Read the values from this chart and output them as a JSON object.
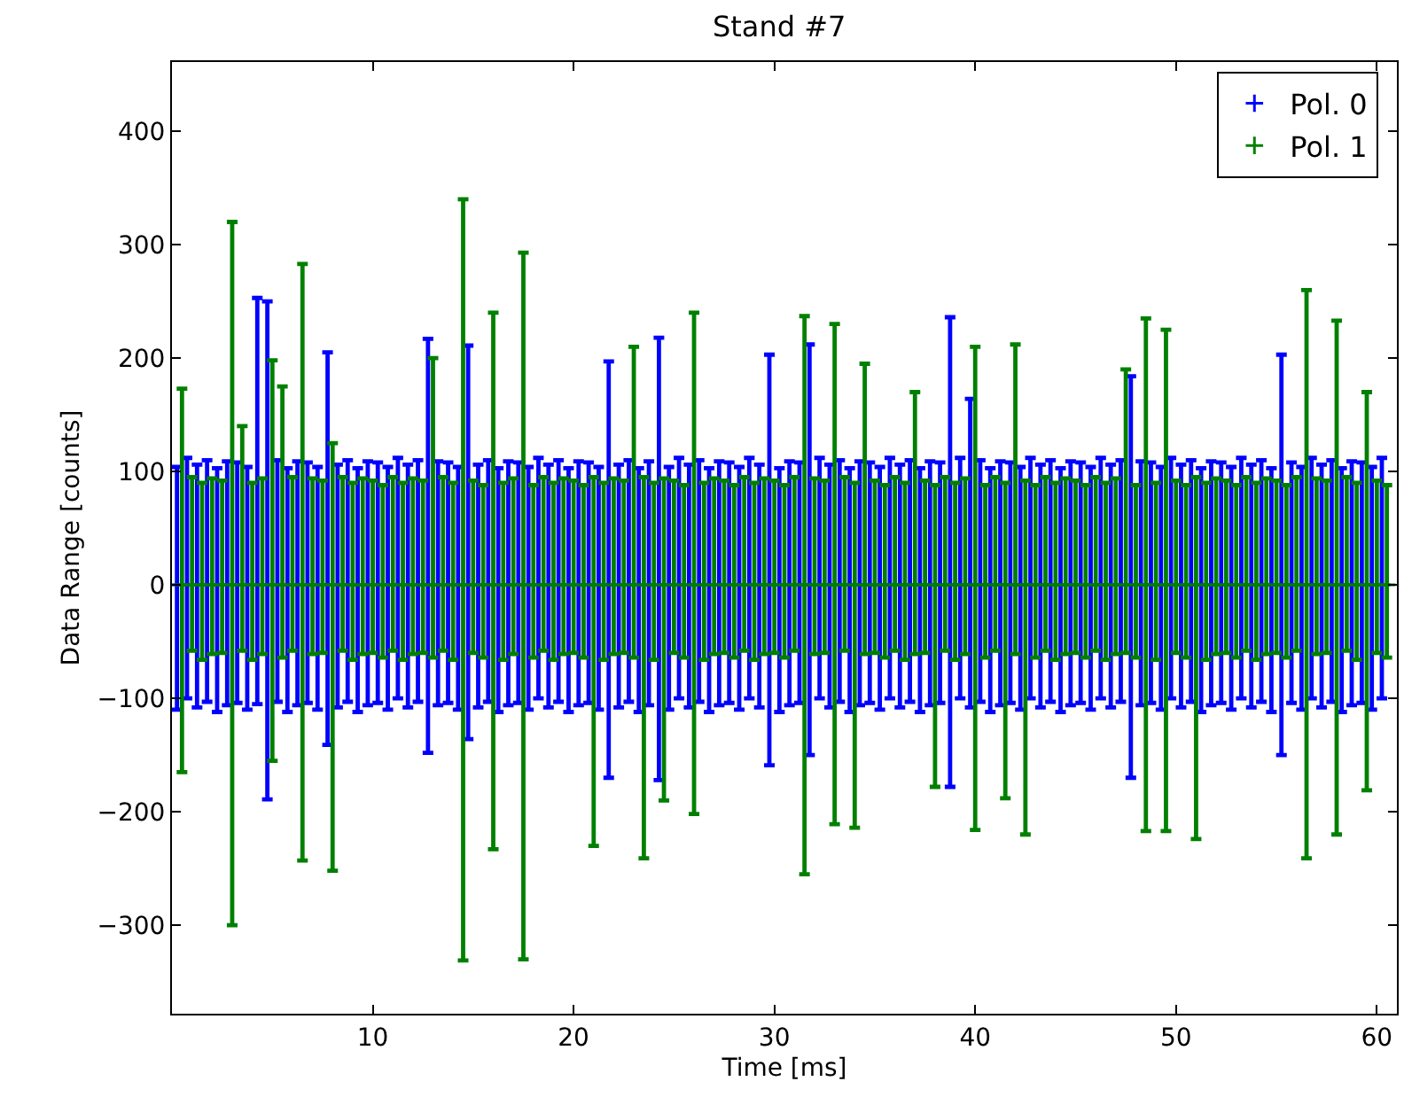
{
  "chart_data": {
    "type": "scatter",
    "title": "Stand #7",
    "xlabel": "Time [ms]",
    "ylabel": "Data Range [counts]",
    "xlim": [
      0,
      61
    ],
    "ylim": [
      -378,
      461
    ],
    "xticks": [
      10,
      20,
      30,
      40,
      50,
      60
    ],
    "yticks": [
      -300,
      -200,
      -100,
      0,
      100,
      200,
      300,
      400
    ],
    "legend": "top right",
    "x": [
      0.5,
      1,
      1.5,
      2,
      2.5,
      3,
      3.5,
      4,
      4.5,
      5,
      5.5,
      6,
      6.5,
      7,
      7.5,
      8,
      8.5,
      9,
      9.5,
      10,
      10.5,
      11,
      11.5,
      12,
      12.5,
      13,
      13.5,
      14,
      14.5,
      15,
      15.5,
      16,
      16.5,
      17,
      17.5,
      18,
      18.5,
      19,
      19.5,
      20,
      20.5,
      21,
      21.5,
      22,
      22.5,
      23,
      23.5,
      24,
      24.5,
      25,
      25.5,
      26,
      26.5,
      27,
      27.5,
      28,
      28.5,
      29,
      29.5,
      30,
      30.5,
      31,
      31.5,
      32,
      32.5,
      33,
      33.5,
      34,
      34.5,
      35,
      35.5,
      36,
      36.5,
      37,
      37.5,
      38,
      38.5,
      39,
      39.5,
      40,
      40.5,
      41,
      41.5,
      42,
      42.5,
      43,
      43.5,
      44,
      44.5,
      45,
      45.5,
      46,
      46.5,
      47,
      47.5,
      48,
      48.5,
      49,
      49.5,
      50,
      50.5,
      51,
      51.5,
      52,
      52.5,
      53,
      53.5,
      54,
      54.5,
      55,
      55.5,
      56,
      56.5,
      57,
      57.5,
      58,
      58.5,
      59,
      59.5,
      60,
      60.5
    ],
    "series": [
      {
        "name": "Pol. 0",
        "color": "#0000ff",
        "x": [
          0.25,
          0.75,
          1.25,
          1.75,
          2.25,
          2.75,
          3.25,
          3.75,
          4.25,
          4.75,
          5.25,
          5.75,
          6.25,
          6.75,
          7.25,
          7.75,
          8.25,
          8.75,
          9.25,
          9.75,
          10.25,
          10.75,
          11.25,
          11.75,
          12.25,
          12.75,
          13.25,
          13.75,
          14.25,
          14.75,
          15.25,
          15.75,
          16.25,
          16.75,
          17.25,
          17.75,
          18.25,
          18.75,
          19.25,
          19.75,
          20.25,
          20.75,
          21.25,
          21.75,
          22.25,
          22.75,
          23.25,
          23.75,
          24.25,
          24.75,
          25.25,
          25.75,
          26.25,
          26.75,
          27.25,
          27.75,
          28.25,
          28.75,
          29.25,
          29.75,
          30.25,
          30.75,
          31.25,
          31.75,
          32.25,
          32.75,
          33.25,
          33.75,
          34.25,
          34.75,
          35.25,
          35.75,
          36.25,
          36.75,
          37.25,
          37.75,
          38.25,
          38.75,
          39.25,
          39.75,
          40.25,
          40.75,
          41.25,
          41.75,
          42.25,
          42.75,
          43.25,
          43.75,
          44.25,
          44.75,
          45.25,
          45.75,
          46.25,
          46.75,
          47.25,
          47.75,
          48.25,
          48.75,
          49.25,
          49.75,
          50.25,
          50.75,
          51.25,
          51.75,
          52.25,
          52.75,
          53.25,
          53.75,
          54.25,
          54.75,
          55.25,
          55.75,
          56.25,
          56.75,
          57.25,
          57.75,
          58.25,
          58.75,
          59.25,
          59.75,
          60.25
        ],
        "values": [
          0,
          0,
          0,
          0,
          0,
          0,
          0,
          0,
          0,
          0,
          0,
          0,
          0,
          0,
          0,
          0,
          0,
          0,
          0,
          0,
          0,
          0,
          0,
          0,
          0,
          0,
          0,
          0,
          0,
          0,
          0,
          0,
          0,
          0,
          0,
          0,
          0,
          0,
          0,
          0,
          0,
          0,
          0,
          0,
          0,
          0,
          0,
          0,
          0,
          0,
          0,
          0,
          0,
          0,
          0,
          0,
          0,
          0,
          0,
          0,
          0,
          0,
          0,
          0,
          0,
          0,
          0,
          0,
          0,
          0,
          0,
          0,
          0,
          0,
          0,
          0,
          0,
          0,
          0,
          0,
          0,
          0,
          0,
          0,
          0,
          0,
          0,
          0,
          0,
          0,
          0,
          0,
          0,
          0,
          0,
          0,
          0,
          0,
          0,
          0,
          0,
          0,
          0,
          0,
          0,
          0,
          0,
          0,
          0,
          0,
          0,
          0,
          0,
          0,
          0,
          0,
          0,
          0,
          0,
          0,
          0
        ],
        "errors": [
          [
            -110,
            104
          ],
          [
            -100,
            112
          ],
          [
            -108,
            106
          ],
          [
            -103,
            110
          ],
          [
            -112,
            103
          ],
          [
            -106,
            109
          ],
          [
            -104,
            108
          ],
          [
            -110,
            104
          ],
          [
            -105,
            253
          ],
          [
            -189,
            250
          ],
          [
            -103,
            110
          ],
          [
            -112,
            103
          ],
          [
            -106,
            109
          ],
          [
            -104,
            108
          ],
          [
            -110,
            104
          ],
          [
            -141,
            205
          ],
          [
            -108,
            106
          ],
          [
            -103,
            110
          ],
          [
            -112,
            103
          ],
          [
            -106,
            109
          ],
          [
            -104,
            108
          ],
          [
            -110,
            104
          ],
          [
            -100,
            112
          ],
          [
            -108,
            106
          ],
          [
            -103,
            110
          ],
          [
            -148,
            217
          ],
          [
            -106,
            109
          ],
          [
            -104,
            108
          ],
          [
            -110,
            104
          ],
          [
            -136,
            211
          ],
          [
            -108,
            106
          ],
          [
            -103,
            110
          ],
          [
            -112,
            103
          ],
          [
            -106,
            109
          ],
          [
            -104,
            108
          ],
          [
            -110,
            104
          ],
          [
            -100,
            112
          ],
          [
            -108,
            106
          ],
          [
            -103,
            110
          ],
          [
            -112,
            103
          ],
          [
            -106,
            109
          ],
          [
            -104,
            108
          ],
          [
            -110,
            104
          ],
          [
            -170,
            197
          ],
          [
            -108,
            106
          ],
          [
            -103,
            110
          ],
          [
            -112,
            103
          ],
          [
            -106,
            109
          ],
          [
            -172,
            218
          ],
          [
            -110,
            104
          ],
          [
            -100,
            112
          ],
          [
            -108,
            106
          ],
          [
            -103,
            110
          ],
          [
            -112,
            103
          ],
          [
            -106,
            109
          ],
          [
            -104,
            108
          ],
          [
            -110,
            104
          ],
          [
            -100,
            112
          ],
          [
            -108,
            106
          ],
          [
            -159,
            203
          ],
          [
            -112,
            103
          ],
          [
            -106,
            109
          ],
          [
            -104,
            108
          ],
          [
            -150,
            212
          ],
          [
            -100,
            112
          ],
          [
            -108,
            106
          ],
          [
            -103,
            110
          ],
          [
            -112,
            103
          ],
          [
            -106,
            109
          ],
          [
            -104,
            108
          ],
          [
            -110,
            104
          ],
          [
            -100,
            112
          ],
          [
            -108,
            106
          ],
          [
            -103,
            110
          ],
          [
            -112,
            103
          ],
          [
            -106,
            109
          ],
          [
            -104,
            108
          ],
          [
            -178,
            236
          ],
          [
            -100,
            112
          ],
          [
            -108,
            164
          ],
          [
            -103,
            110
          ],
          [
            -112,
            103
          ],
          [
            -106,
            109
          ],
          [
            -104,
            108
          ],
          [
            -110,
            104
          ],
          [
            -100,
            112
          ],
          [
            -108,
            106
          ],
          [
            -103,
            110
          ],
          [
            -112,
            103
          ],
          [
            -106,
            109
          ],
          [
            -104,
            108
          ],
          [
            -110,
            104
          ],
          [
            -100,
            112
          ],
          [
            -108,
            106
          ],
          [
            -103,
            110
          ],
          [
            -170,
            184
          ],
          [
            -106,
            109
          ],
          [
            -104,
            108
          ],
          [
            -110,
            104
          ],
          [
            -100,
            112
          ],
          [
            -108,
            106
          ],
          [
            -103,
            110
          ],
          [
            -112,
            103
          ],
          [
            -106,
            109
          ],
          [
            -104,
            108
          ],
          [
            -110,
            104
          ],
          [
            -100,
            112
          ],
          [
            -108,
            106
          ],
          [
            -103,
            110
          ],
          [
            -112,
            103
          ],
          [
            -150,
            203
          ],
          [
            -104,
            108
          ],
          [
            -110,
            104
          ],
          [
            -100,
            112
          ],
          [
            -108,
            106
          ],
          [
            -103,
            110
          ],
          [
            -112,
            103
          ],
          [
            -106,
            109
          ],
          [
            -104,
            108
          ],
          [
            -110,
            104
          ],
          [
            -100,
            112
          ]
        ]
      },
      {
        "name": "Pol. 1",
        "color": "#008000",
        "values": [
          0,
          0,
          0,
          0,
          0,
          0,
          0,
          0,
          0,
          0,
          0,
          0,
          0,
          0,
          0,
          0,
          0,
          0,
          0,
          0,
          0,
          0,
          0,
          0,
          0,
          0,
          0,
          0,
          0,
          0,
          0,
          0,
          0,
          0,
          0,
          0,
          0,
          0,
          0,
          0,
          0,
          0,
          0,
          0,
          0,
          0,
          0,
          0,
          0,
          0,
          0,
          0,
          0,
          0,
          0,
          0,
          0,
          0,
          0,
          0,
          0,
          0,
          0,
          0,
          0,
          0,
          0,
          0,
          0,
          0,
          0,
          0,
          0,
          0,
          0,
          0,
          0,
          0,
          0,
          0,
          0,
          0,
          0,
          0,
          0,
          0,
          0,
          0,
          0,
          0,
          0,
          0,
          0,
          0,
          0,
          0,
          0,
          0,
          0,
          0,
          0,
          0,
          0,
          0,
          0,
          0,
          0,
          0,
          0,
          0,
          0,
          0,
          0,
          0,
          0,
          0,
          0,
          0,
          0,
          0,
          0
        ],
        "errors": [
          [
            -165,
            173
          ],
          [
            -58,
            95
          ],
          [
            -66,
            90
          ],
          [
            -61,
            94
          ],
          [
            -60,
            92
          ],
          [
            -300,
            320
          ],
          [
            -58,
            140
          ],
          [
            -66,
            90
          ],
          [
            -61,
            94
          ],
          [
            -155,
            198
          ],
          [
            -64,
            175
          ],
          [
            -58,
            95
          ],
          [
            -243,
            283
          ],
          [
            -61,
            94
          ],
          [
            -60,
            92
          ],
          [
            -252,
            125
          ],
          [
            -58,
            95
          ],
          [
            -66,
            90
          ],
          [
            -61,
            94
          ],
          [
            -60,
            92
          ],
          [
            -64,
            88
          ],
          [
            -58,
            95
          ],
          [
            -66,
            90
          ],
          [
            -61,
            94
          ],
          [
            -60,
            92
          ],
          [
            -64,
            200
          ],
          [
            -58,
            95
          ],
          [
            -66,
            90
          ],
          [
            -331,
            340
          ],
          [
            -60,
            92
          ],
          [
            -64,
            88
          ],
          [
            -233,
            240
          ],
          [
            -66,
            90
          ],
          [
            -61,
            94
          ],
          [
            -330,
            293
          ],
          [
            -64,
            88
          ],
          [
            -58,
            95
          ],
          [
            -66,
            90
          ],
          [
            -61,
            94
          ],
          [
            -60,
            92
          ],
          [
            -64,
            88
          ],
          [
            -230,
            95
          ],
          [
            -66,
            90
          ],
          [
            -61,
            94
          ],
          [
            -60,
            92
          ],
          [
            -64,
            210
          ],
          [
            -241,
            95
          ],
          [
            -66,
            90
          ],
          [
            -190,
            94
          ],
          [
            -60,
            92
          ],
          [
            -64,
            88
          ],
          [
            -202,
            240
          ],
          [
            -66,
            90
          ],
          [
            -61,
            94
          ],
          [
            -60,
            92
          ],
          [
            -64,
            88
          ],
          [
            -58,
            95
          ],
          [
            -66,
            90
          ],
          [
            -61,
            94
          ],
          [
            -60,
            92
          ],
          [
            -64,
            88
          ],
          [
            -58,
            95
          ],
          [
            -255,
            237
          ],
          [
            -61,
            94
          ],
          [
            -60,
            92
          ],
          [
            -211,
            230
          ],
          [
            -58,
            95
          ],
          [
            -214,
            90
          ],
          [
            -61,
            195
          ],
          [
            -60,
            92
          ],
          [
            -64,
            88
          ],
          [
            -58,
            95
          ],
          [
            -66,
            90
          ],
          [
            -61,
            170
          ],
          [
            -60,
            92
          ],
          [
            -178,
            88
          ],
          [
            -58,
            95
          ],
          [
            -66,
            90
          ],
          [
            -61,
            94
          ],
          [
            -216,
            210
          ],
          [
            -64,
            88
          ],
          [
            -58,
            95
          ],
          [
            -188,
            90
          ],
          [
            -61,
            212
          ],
          [
            -220,
            92
          ],
          [
            -64,
            88
          ],
          [
            -58,
            95
          ],
          [
            -66,
            90
          ],
          [
            -61,
            94
          ],
          [
            -60,
            92
          ],
          [
            -64,
            88
          ],
          [
            -58,
            95
          ],
          [
            -66,
            90
          ],
          [
            -61,
            94
          ],
          [
            -60,
            190
          ],
          [
            -64,
            88
          ],
          [
            -217,
            235
          ],
          [
            -66,
            90
          ],
          [
            -217,
            225
          ],
          [
            -60,
            92
          ],
          [
            -64,
            88
          ],
          [
            -224,
            95
          ],
          [
            -66,
            90
          ],
          [
            -61,
            94
          ],
          [
            -60,
            92
          ],
          [
            -64,
            88
          ],
          [
            -58,
            95
          ],
          [
            -66,
            90
          ],
          [
            -61,
            94
          ],
          [
            -60,
            92
          ],
          [
            -64,
            88
          ],
          [
            -58,
            95
          ],
          [
            -241,
            260
          ],
          [
            -61,
            94
          ],
          [
            -60,
            92
          ],
          [
            -220,
            233
          ],
          [
            -58,
            95
          ],
          [
            -66,
            90
          ],
          [
            -181,
            170
          ],
          [
            -60,
            92
          ],
          [
            -64,
            88
          ]
        ]
      }
    ]
  }
}
